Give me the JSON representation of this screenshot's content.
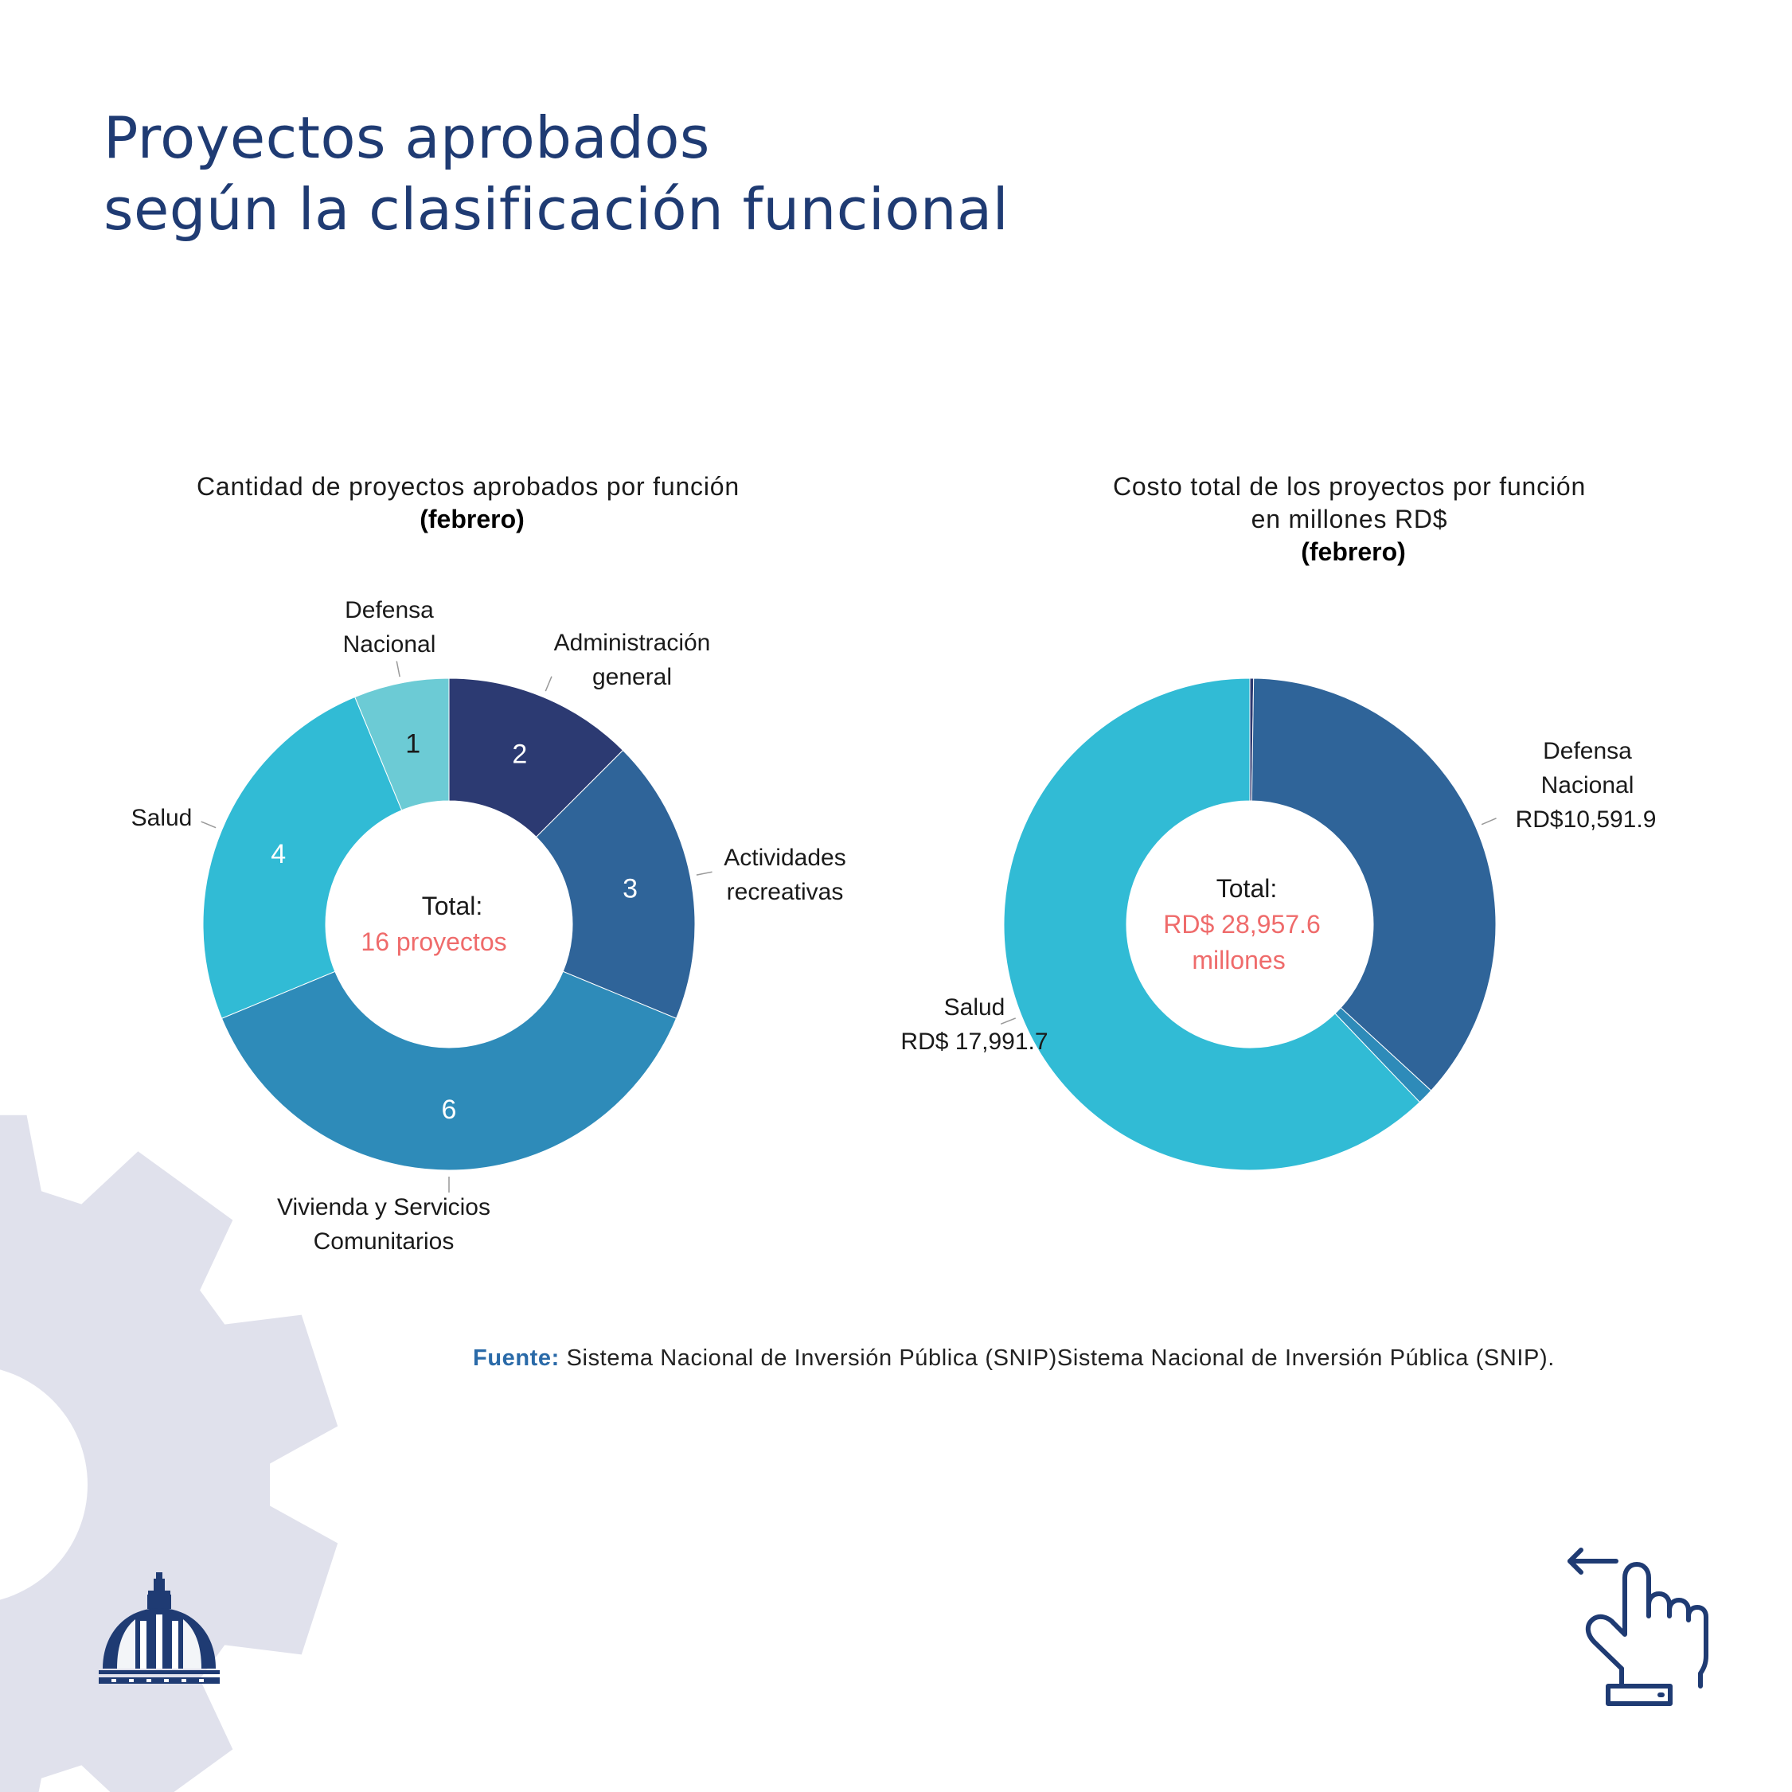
{
  "title_line1": "Proyectos aprobados",
  "title_line2": "según la clasificación funcional",
  "source_label": "Fuente:",
  "source_text": "Sistema Nacional de Inversión Pública (SNIP)Sistema Nacional de Inversión Pública (SNIP).",
  "colors": {
    "title": "#1f3b73",
    "accent_red": "#ef6b6b",
    "gear": "#e0e1ec",
    "icon": "#1f3b73"
  },
  "chart_data": [
    {
      "type": "pie",
      "title": "Cantidad de proyectos aprobados por función",
      "subtitle": "(febrero)",
      "center_label": "Total:",
      "center_value": "16 proyectos",
      "categories": [
        "Administración general",
        "Actividades recreativas",
        "Vivienda y Servicios Comunitarios",
        "Salud",
        "Defensa Nacional"
      ],
      "values": [
        2,
        3,
        6,
        4,
        1
      ],
      "value_labels": [
        "2",
        "3",
        "6",
        "4",
        "1"
      ],
      "category_labels": [
        [
          "Administración",
          "general"
        ],
        [
          "Actividades",
          "recreativas"
        ],
        [
          "Vivienda y Servicios",
          "Comunitarios"
        ],
        [
          "Salud"
        ],
        [
          "Defensa",
          "Nacional"
        ]
      ],
      "colors": [
        "#2c3a72",
        "#2f6499",
        "#2e8bb9",
        "#31bbd5",
        "#6ccbd5"
      ]
    },
    {
      "type": "pie",
      "title": "Costo total de los proyectos por función",
      "title_line2": "en millones RD$",
      "subtitle": "(febrero)",
      "center_label": "Total:",
      "center_value_line1": "RD$ 28,957.6",
      "center_value_line2": "millones",
      "categories": [
        "Administración general",
        "Defensa Nacional",
        "Actividades recreativas",
        "Salud"
      ],
      "values": [
        70,
        10591.9,
        304,
        17991.7
      ],
      "category_labels": [
        [],
        [
          "Defensa",
          "Nacional",
          "RD$10,591.9"
        ],
        [],
        [
          "Salud",
          "RD$ 17,991.7"
        ]
      ],
      "colors": [
        "#2c3a72",
        "#2f6499",
        "#2e8bb9",
        "#31bbd5"
      ]
    }
  ]
}
